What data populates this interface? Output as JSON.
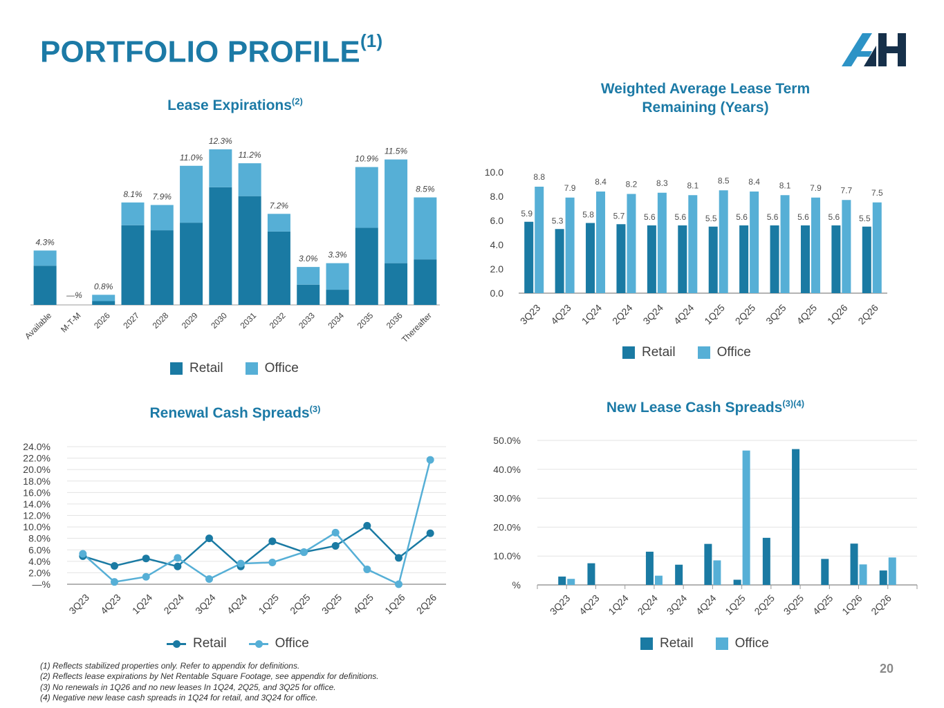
{
  "page": {
    "title": "PORTFOLIO PROFILE",
    "title_sup": "(1)",
    "page_number": "20",
    "footnotes": [
      "(1)  Reflects stabilized properties only. Refer to appendix for definitions.",
      "(2)  Reflects lease expirations by Net Rentable Square Footage, see appendix for definitions.",
      "(3)  No renewals in 1Q26 and no new leases In 1Q24, 2Q25, and 3Q25 for office.",
      "(4)  Negative new lease cash spreads in 1Q24 for retail, and 3Q24 for office."
    ]
  },
  "colors": {
    "title": "#1c7aa6",
    "retail": "#1a7aa3",
    "office": "#56afd6",
    "axis": "#9a9a9a",
    "grid": "#e3e3e3",
    "logo_light": "#2d93c6",
    "logo_dark": "#16304a"
  },
  "legend": {
    "retail": "Retail",
    "office": "Office"
  },
  "chart_data": [
    {
      "id": "lease_expirations",
      "type": "bar",
      "stacked": true,
      "title": "Lease Expirations",
      "title_sup": "(2)",
      "categories": [
        "Available",
        "M-T-M",
        "2026",
        "2027",
        "2028",
        "2029",
        "2030",
        "2031",
        "2032",
        "2033",
        "2034",
        "2035",
        "2036",
        "Thereafter"
      ],
      "totals": [
        "4.3%",
        "—%",
        "0.8%",
        "8.1%",
        "7.9%",
        "11.0%",
        "12.3%",
        "11.2%",
        "7.2%",
        "3.0%",
        "3.3%",
        "10.9%",
        "11.5%",
        "8.5%"
      ],
      "series": [
        {
          "name": "Retail",
          "values": [
            3.1,
            0,
            0.3,
            6.3,
            5.9,
            6.5,
            9.3,
            8.6,
            5.8,
            1.6,
            1.2,
            6.1,
            3.3,
            3.6
          ]
        },
        {
          "name": "Office",
          "values": [
            1.2,
            0,
            0.5,
            1.8,
            2.0,
            4.5,
            3.0,
            2.6,
            1.4,
            1.4,
            2.1,
            4.8,
            8.2,
            4.9
          ]
        }
      ],
      "ylim": [
        0,
        12.3
      ],
      "legend_position": "bottom"
    },
    {
      "id": "walt",
      "type": "bar",
      "title": "Weighted Average Lease Term Remaining (Years)",
      "title_lines": [
        "Weighted Average Lease Term",
        "Remaining (Years)"
      ],
      "categories": [
        "3Q23",
        "4Q23",
        "1Q24",
        "2Q24",
        "3Q24",
        "4Q24",
        "1Q25",
        "2Q25",
        "3Q25",
        "4Q25",
        "1Q26",
        "2Q26"
      ],
      "series": [
        {
          "name": "Retail",
          "values": [
            5.9,
            5.3,
            5.8,
            5.7,
            5.6,
            5.6,
            5.5,
            5.6,
            5.6,
            5.6,
            5.6,
            5.5
          ]
        },
        {
          "name": "Office",
          "values": [
            8.8,
            7.9,
            8.4,
            8.2,
            8.3,
            8.1,
            8.5,
            8.4,
            8.1,
            7.9,
            7.7,
            7.5
          ]
        }
      ],
      "yticks": [
        "0.0",
        "2.0",
        "4.0",
        "6.0",
        "8.0",
        "10.0"
      ],
      "ylim": [
        0,
        10
      ],
      "legend_position": "bottom"
    },
    {
      "id": "renewal_spreads",
      "type": "line",
      "title": "Renewal Cash Spreads",
      "title_sup": "(3)",
      "categories": [
        "3Q23",
        "4Q23",
        "1Q24",
        "2Q24",
        "3Q24",
        "4Q24",
        "1Q25",
        "2Q25",
        "3Q25",
        "4Q25",
        "1Q26",
        "2Q26"
      ],
      "series": [
        {
          "name": "Retail",
          "values": [
            4.9,
            3.2,
            4.5,
            3.1,
            8.0,
            3.1,
            7.5,
            5.6,
            6.7,
            10.2,
            4.6,
            8.9
          ]
        },
        {
          "name": "Office",
          "values": [
            5.3,
            0.4,
            1.3,
            4.6,
            0.9,
            3.6,
            3.8,
            5.6,
            9.0,
            2.6,
            0.0,
            21.7
          ]
        }
      ],
      "yticks": [
        "—%",
        "2.0%",
        "4.0%",
        "6.0%",
        "8.0%",
        "10.0%",
        "12.0%",
        "14.0%",
        "16.0%",
        "18.0%",
        "20.0%",
        "22.0%",
        "24.0%"
      ],
      "ylim": [
        0,
        24
      ],
      "grid": true,
      "legend_position": "bottom"
    },
    {
      "id": "new_lease_spreads",
      "type": "bar",
      "title": "New Lease Cash Spreads",
      "title_sup": "(3)(4)",
      "categories": [
        "3Q23",
        "4Q23",
        "1Q24",
        "2Q24",
        "3Q24",
        "4Q24",
        "1Q25",
        "2Q25",
        "3Q25",
        "4Q25",
        "1Q26",
        "2Q26"
      ],
      "series": [
        {
          "name": "Retail",
          "values": [
            2.9,
            7.5,
            null,
            11.5,
            7.0,
            14.2,
            1.8,
            16.3,
            47.0,
            9.0,
            14.3,
            5.0
          ]
        },
        {
          "name": "Office",
          "values": [
            2.1,
            null,
            null,
            3.2,
            null,
            8.5,
            46.5,
            null,
            null,
            null,
            7.1,
            9.5
          ]
        }
      ],
      "yticks": [
        "%",
        "10.0%",
        "20.0%",
        "30.0%",
        "40.0%",
        "50.0%"
      ],
      "ylim": [
        0,
        50
      ],
      "grid": true,
      "legend_position": "bottom"
    }
  ]
}
